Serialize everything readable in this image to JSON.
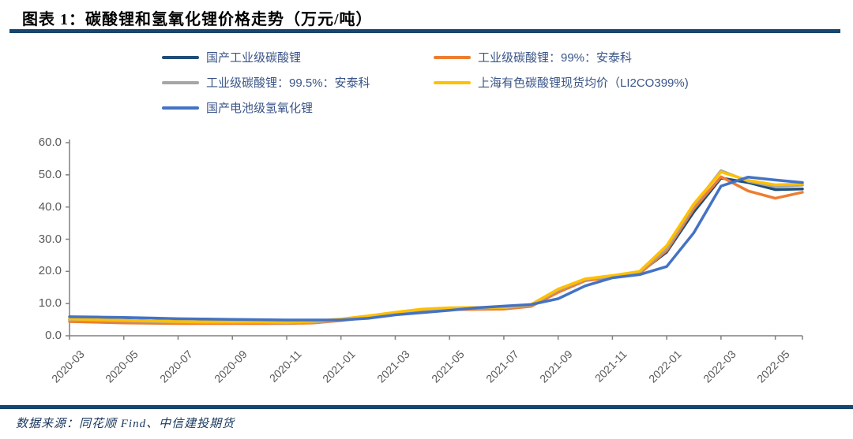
{
  "header": {
    "title": "图表 1：碳酸锂和氢氧化锂价格走势（万元/吨）"
  },
  "footer": {
    "source": "数据来源：同花顺 Find、中信建投期货"
  },
  "colors": {
    "rule": "#17466F",
    "axis": "#808080",
    "tick_label": "#595959",
    "legend_text": "#3B5588"
  },
  "chart_data": {
    "type": "line",
    "title": "碳酸锂和氢氧化锂价格走势（万元/吨）",
    "xlabel": "",
    "ylabel": "",
    "ylim": [
      0,
      60
    ],
    "y_ticks": [
      0,
      10,
      20,
      30,
      40,
      50,
      60
    ],
    "grid": false,
    "legend_position": "top",
    "x": [
      "2020-03",
      "2020-04",
      "2020-05",
      "2020-06",
      "2020-07",
      "2020-08",
      "2020-09",
      "2020-10",
      "2020-11",
      "2020-12",
      "2021-01",
      "2021-02",
      "2021-03",
      "2021-04",
      "2021-05",
      "2021-06",
      "2021-07",
      "2021-08",
      "2021-09",
      "2021-10",
      "2021-11",
      "2021-12",
      "2022-01",
      "2022-02",
      "2022-03",
      "2022-04",
      "2022-05",
      "2022-06"
    ],
    "x_tick_labels": [
      "2020-03",
      "2020-05",
      "2020-07",
      "2020-09",
      "2020-11",
      "2021-01",
      "2021-03",
      "2021-05",
      "2021-07",
      "2021-09",
      "2021-11",
      "2022-01",
      "2022-03",
      "2022-05"
    ],
    "series": [
      {
        "name": "国产工业级碳酸锂",
        "color": "#1F4E79",
        "values": [
          5.1,
          5.0,
          4.9,
          4.6,
          4.4,
          4.3,
          4.3,
          4.3,
          4.2,
          4.4,
          5.0,
          6.0,
          7.0,
          8.0,
          8.4,
          8.5,
          8.6,
          9.4,
          14.0,
          17.4,
          18.4,
          19.6,
          26.0,
          38.5,
          49.0,
          47.6,
          45.4,
          45.6
        ]
      },
      {
        "name": "工业级碳酸锂：99%：安泰科",
        "color": "#ED7D31",
        "values": [
          4.4,
          4.2,
          4.0,
          3.9,
          3.8,
          3.8,
          3.8,
          3.8,
          3.8,
          4.0,
          4.7,
          5.7,
          6.7,
          7.7,
          8.1,
          8.2,
          8.3,
          9.1,
          13.5,
          17.1,
          18.2,
          19.3,
          26.5,
          39.5,
          49.4,
          45.0,
          42.7,
          44.6
        ]
      },
      {
        "name": "工业级碳酸锂：99.5%：安泰科",
        "color": "#A6A6A6",
        "values": [
          4.9,
          4.8,
          4.6,
          4.4,
          4.2,
          4.1,
          4.1,
          4.1,
          4.0,
          4.2,
          4.9,
          6.0,
          7.1,
          8.1,
          8.5,
          8.6,
          8.7,
          9.5,
          14.2,
          17.5,
          18.5,
          19.8,
          27.2,
          40.5,
          51.3,
          48.0,
          46.3,
          46.8
        ]
      },
      {
        "name": "上海有色碳酸锂现货均价（LI2CO399%)",
        "color": "#FFC000",
        "values": [
          5.2,
          5.0,
          4.8,
          4.6,
          4.4,
          4.3,
          4.3,
          4.3,
          4.2,
          4.5,
          5.2,
          6.2,
          7.3,
          8.3,
          8.7,
          8.8,
          8.8,
          9.7,
          14.5,
          17.7,
          18.7,
          20.0,
          28.0,
          41.0,
          50.9,
          48.3,
          46.9,
          47.2
        ]
      },
      {
        "name": "国产电池级氢氧化锂",
        "color": "#4472C4",
        "values": [
          5.9,
          5.8,
          5.7,
          5.5,
          5.3,
          5.2,
          5.1,
          5.0,
          4.9,
          4.9,
          4.9,
          5.4,
          6.5,
          7.2,
          7.9,
          8.7,
          9.2,
          9.7,
          11.5,
          15.5,
          18.0,
          19.0,
          21.5,
          32.0,
          46.5,
          49.3,
          48.4,
          47.6
        ]
      }
    ]
  }
}
